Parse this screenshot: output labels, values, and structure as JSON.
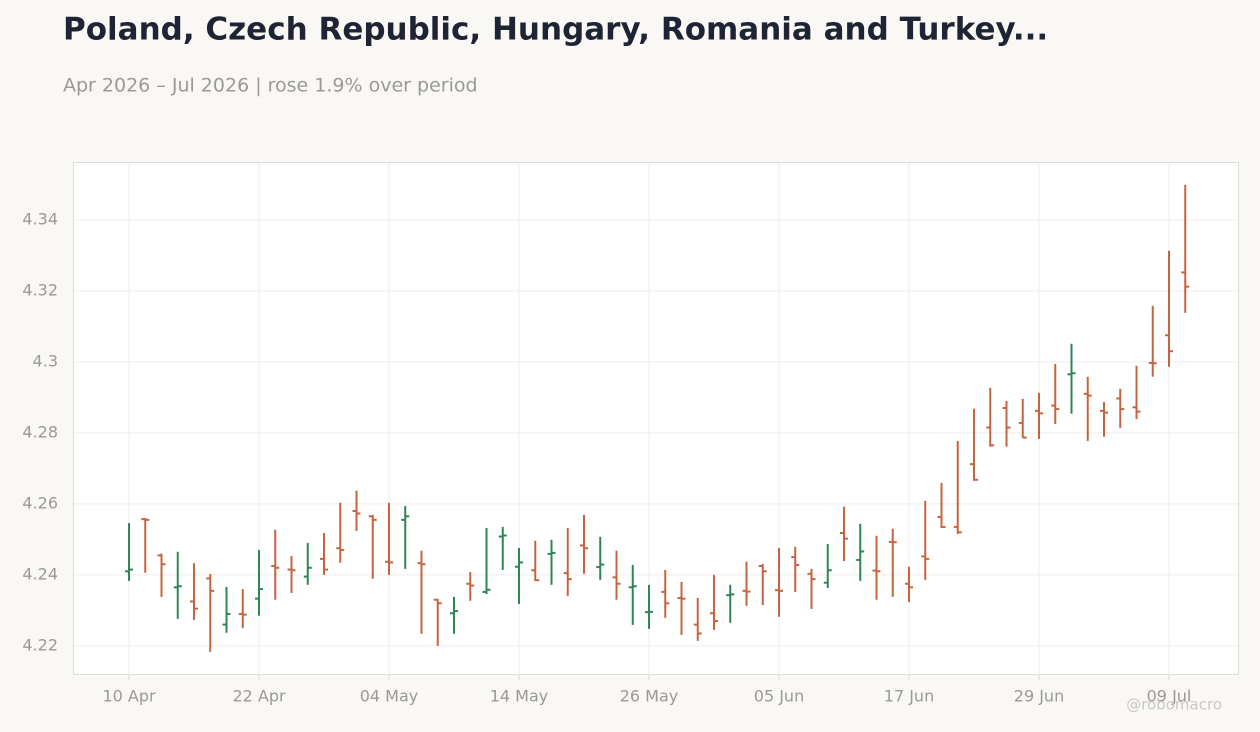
{
  "chart_data": {
    "type": "ohlc",
    "title": "Poland, Czech Republic, Hungary, Romania and Turkey...",
    "subtitle": "Apr 2026 – Jul 2026 | rose 1.9% over period",
    "watermark": "@robomacro",
    "categories": [
      "10 Apr",
      null,
      null,
      null,
      null,
      null,
      null,
      null,
      "22 Apr",
      null,
      null,
      null,
      null,
      null,
      null,
      null,
      "04 May",
      null,
      null,
      null,
      null,
      null,
      null,
      null,
      "14 May",
      null,
      null,
      null,
      null,
      null,
      null,
      null,
      "26 May",
      null,
      null,
      null,
      null,
      null,
      null,
      null,
      "05 Jun",
      null,
      null,
      null,
      null,
      null,
      null,
      null,
      "17 Jun",
      null,
      null,
      null,
      null,
      null,
      null,
      null,
      "29 Jun",
      null,
      null,
      null,
      null,
      null,
      null,
      null,
      "09 Jul",
      null
    ],
    "open": [
      4.241,
      4.2557,
      4.2455,
      4.2365,
      4.2325,
      4.239,
      4.226,
      4.229,
      4.2333,
      4.2425,
      4.2415,
      4.2395,
      4.2445,
      4.2475,
      4.258,
      4.2565,
      4.2437,
      4.2555,
      4.2433,
      4.233,
      4.2292,
      4.2375,
      4.2352,
      4.2508,
      4.2423,
      4.2413,
      4.2459,
      4.2405,
      4.2483,
      4.2422,
      4.2393,
      4.2365,
      4.2295,
      4.2352,
      4.2335,
      4.226,
      4.2292,
      4.2343,
      4.2355,
      4.2425,
      4.2357,
      4.245,
      4.2403,
      4.2378,
      4.2518,
      4.2442,
      4.2412,
      4.2493,
      4.2375,
      4.2452,
      4.2563,
      4.2535,
      4.2712,
      4.2815,
      4.287,
      4.2828,
      4.2862,
      4.2877,
      4.2965,
      4.291,
      4.2862,
      4.2897,
      4.2872,
      4.2997,
      4.3075,
      4.3252
    ],
    "high": [
      4.2546,
      4.256,
      4.246,
      4.2465,
      4.2433,
      4.2403,
      4.2366,
      4.236,
      4.247,
      4.2527,
      4.2453,
      4.249,
      4.2518,
      4.2603,
      4.2637,
      4.2569,
      4.2603,
      4.2594,
      4.2468,
      4.2332,
      4.2338,
      4.2408,
      4.2532,
      4.2535,
      4.2476,
      4.2496,
      4.2499,
      4.2532,
      4.2569,
      4.2507,
      4.2468,
      4.2428,
      4.2372,
      4.2414,
      4.238,
      4.2335,
      4.24,
      4.2372,
      4.2437,
      4.2431,
      4.2476,
      4.2479,
      4.2417,
      4.2487,
      4.2592,
      4.2544,
      4.251,
      4.253,
      4.2423,
      4.2608,
      4.2659,
      4.2777,
      4.2868,
      4.2927,
      4.289,
      4.2896,
      4.2913,
      4.2994,
      4.3051,
      4.2958,
      4.2887,
      4.2924,
      4.2989,
      4.3158,
      4.3313,
      4.3499
    ],
    "low": [
      4.2383,
      4.2406,
      4.2338,
      4.2276,
      4.2273,
      4.2183,
      4.2237,
      4.225,
      4.2285,
      4.233,
      4.2349,
      4.2372,
      4.24,
      4.2434,
      4.2524,
      4.2389,
      4.24,
      4.2417,
      4.2234,
      4.22,
      4.2234,
      4.2327,
      4.2346,
      4.2414,
      4.2318,
      4.2383,
      4.2372,
      4.2341,
      4.2403,
      4.2386,
      4.233,
      4.2259,
      4.2248,
      4.2279,
      4.2231,
      4.2214,
      4.2245,
      4.2265,
      4.2313,
      4.2315,
      4.2282,
      4.2352,
      4.2304,
      4.2363,
      4.2439,
      4.2383,
      4.233,
      4.2338,
      4.2324,
      4.2386,
      4.2532,
      4.2515,
      4.2665,
      4.2761,
      4.2761,
      4.2786,
      4.2783,
      4.2825,
      4.2854,
      4.2777,
      4.2789,
      4.2814,
      4.2839,
      4.2958,
      4.2986,
      4.3138
    ],
    "close": [
      4.2415,
      4.2555,
      4.243,
      4.2368,
      4.2305,
      4.2355,
      4.229,
      4.2288,
      4.236,
      4.242,
      4.2413,
      4.242,
      4.2415,
      4.247,
      4.2573,
      4.2555,
      4.2435,
      4.2565,
      4.243,
      4.232,
      4.2298,
      4.237,
      4.2358,
      4.2511,
      4.2435,
      4.2385,
      4.2462,
      4.2388,
      4.2475,
      4.2429,
      4.2375,
      4.2368,
      4.2296,
      4.232,
      4.2333,
      4.2235,
      4.227,
      4.2345,
      4.2353,
      4.241,
      4.2355,
      4.2428,
      4.2388,
      4.2413,
      4.2502,
      4.2466,
      4.241,
      4.2492,
      4.2365,
      4.2445,
      4.2535,
      4.252,
      4.2668,
      4.2765,
      4.2815,
      4.2787,
      4.2855,
      4.2867,
      4.2968,
      4.2905,
      4.2857,
      4.2867,
      4.286,
      4.2996,
      4.303,
      4.3212
    ],
    "up_color": "#2e8555",
    "down_color": "#c5653f",
    "ylim": [
      4.2118,
      4.3563
    ],
    "yticks": [
      4.22,
      4.24,
      4.26,
      4.28,
      4.3,
      4.32,
      4.34
    ],
    "grid": true
  }
}
